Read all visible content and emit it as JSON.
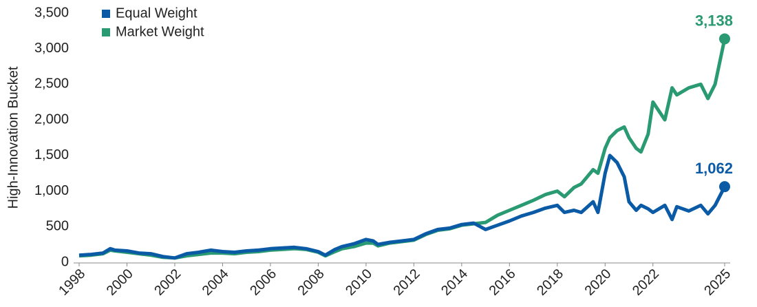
{
  "chart_data": {
    "type": "line",
    "y_label": "High-Innovation Bucket",
    "x": [
      1998,
      1998.5,
      1999,
      1999.3,
      1999.5,
      2000,
      2000.5,
      2001,
      2001.5,
      2002,
      2002.5,
      2003,
      2003.5,
      2004,
      2004.5,
      2005,
      2005.5,
      2006,
      2006.5,
      2007,
      2007.5,
      2008,
      2008.3,
      2008.7,
      2009,
      2009.5,
      2010,
      2010.3,
      2010.5,
      2011,
      2011.5,
      2012,
      2012.5,
      2013,
      2013.5,
      2014,
      2014.5,
      2015,
      2015.5,
      2016,
      2016.5,
      2017,
      2017.5,
      2018,
      2018.3,
      2018.7,
      2019,
      2019.5,
      2019.7,
      2020,
      2020.2,
      2020.5,
      2020.8,
      2021,
      2021.3,
      2021.5,
      2021.8,
      2022,
      2022.5,
      2022.8,
      2023,
      2023.5,
      2024,
      2024.3,
      2024.6,
      2025
    ],
    "series": [
      {
        "name": "Equal Weight",
        "color": "#0b5aa6",
        "values": [
          100,
          110,
          130,
          190,
          170,
          160,
          130,
          120,
          80,
          60,
          120,
          140,
          170,
          150,
          140,
          160,
          170,
          190,
          200,
          210,
          190,
          150,
          100,
          180,
          220,
          260,
          320,
          300,
          250,
          280,
          300,
          320,
          400,
          460,
          480,
          530,
          550,
          460,
          520,
          580,
          650,
          700,
          760,
          800,
          700,
          730,
          700,
          850,
          700,
          1250,
          1500,
          1400,
          1200,
          850,
          730,
          800,
          750,
          700,
          800,
          600,
          780,
          720,
          800,
          680,
          800,
          1062
        ],
        "value_labels": [
          null,
          null,
          null,
          null,
          null,
          null,
          null,
          null,
          null,
          null,
          null,
          null,
          null,
          null,
          null,
          null,
          null,
          null,
          null,
          null,
          null,
          null,
          null,
          null,
          null,
          null,
          null,
          null,
          null,
          null,
          null,
          null,
          null,
          null,
          null,
          null,
          null,
          null,
          null,
          null,
          null,
          null,
          null,
          null,
          null,
          null,
          null,
          null,
          null,
          null,
          null,
          null,
          null,
          null,
          null,
          null,
          null,
          null,
          null,
          null,
          null,
          null,
          null,
          null,
          null,
          "1,062"
        ]
      },
      {
        "name": "Market Weight",
        "color": "#2a9a72",
        "values": [
          90,
          100,
          120,
          170,
          160,
          140,
          120,
          100,
          70,
          60,
          90,
          110,
          130,
          130,
          120,
          140,
          150,
          170,
          180,
          190,
          180,
          140,
          90,
          150,
          190,
          220,
          270,
          270,
          230,
          270,
          290,
          310,
          390,
          450,
          470,
          520,
          540,
          560,
          660,
          730,
          800,
          870,
          950,
          1000,
          920,
          1050,
          1100,
          1300,
          1250,
          1600,
          1750,
          1850,
          1900,
          1750,
          1600,
          1550,
          1800,
          2250,
          2000,
          2450,
          2350,
          2450,
          2500,
          2300,
          2500,
          3138
        ],
        "value_labels": [
          null,
          null,
          null,
          null,
          null,
          null,
          null,
          null,
          null,
          null,
          null,
          null,
          null,
          null,
          null,
          null,
          null,
          null,
          null,
          null,
          null,
          null,
          null,
          null,
          null,
          null,
          null,
          null,
          null,
          null,
          null,
          null,
          null,
          null,
          null,
          null,
          null,
          null,
          null,
          null,
          null,
          null,
          null,
          null,
          null,
          null,
          null,
          null,
          null,
          null,
          null,
          null,
          null,
          null,
          null,
          null,
          null,
          null,
          null,
          null,
          null,
          null,
          null,
          null,
          null,
          "3,138"
        ]
      }
    ],
    "xlim": [
      1998,
      2025
    ],
    "xticks": [
      1998,
      2000,
      2002,
      2004,
      2006,
      2008,
      2010,
      2012,
      2014,
      2016,
      2018,
      2020,
      2022,
      2025
    ],
    "ylim": [
      0,
      3500
    ],
    "yticks": [
      0,
      500,
      {
        "value": 1000,
        "label": "1,000"
      },
      {
        "value": 1500,
        "label": "1,500"
      },
      {
        "value": 2000,
        "label": "2,000"
      },
      {
        "value": 2500,
        "label": "2,500"
      },
      {
        "value": 3000,
        "label": "3,000"
      },
      {
        "value": 3500,
        "label": "3,500"
      }
    ],
    "legend": "top-left"
  }
}
